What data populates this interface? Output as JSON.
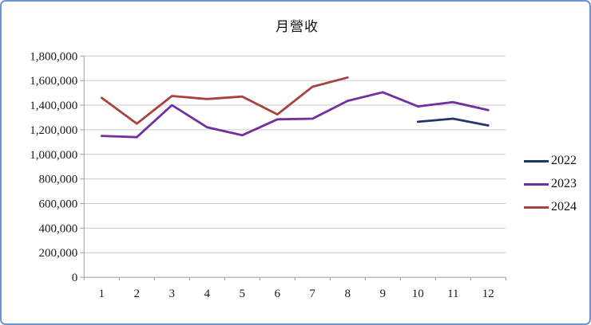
{
  "window": {
    "border_color": "#6A93D4",
    "background_color": "#FFFFFF"
  },
  "chart_data": {
    "type": "line",
    "title": "月營收",
    "categories": [
      "1",
      "2",
      "3",
      "4",
      "5",
      "6",
      "7",
      "8",
      "9",
      "10",
      "11",
      "12"
    ],
    "series": [
      {
        "name": "2022",
        "color": "#1F3864",
        "start_month": 10,
        "values": [
          1265000,
          1290000,
          1235000
        ]
      },
      {
        "name": "2023",
        "color": "#7030A0",
        "start_month": 1,
        "values": [
          1150000,
          1140000,
          1400000,
          1220000,
          1155000,
          1285000,
          1290000,
          1435000,
          1505000,
          1390000,
          1425000,
          1360000
        ]
      },
      {
        "name": "2024",
        "color": "#A8423E",
        "start_month": 1,
        "values": [
          1460000,
          1250000,
          1475000,
          1450000,
          1470000,
          1325000,
          1550000,
          1625000
        ]
      }
    ],
    "ylim": [
      0,
      1800000
    ],
    "ytick_step": 200000,
    "ytick_labels": [
      "0",
      "200,000",
      "400,000",
      "600,000",
      "800,000",
      "1,000,000",
      "1,200,000",
      "1,400,000",
      "1,600,000",
      "1,800,000"
    ],
    "xlabel": "",
    "ylabel": "",
    "grid": true,
    "legend_position": "right",
    "gridline_color": "#C9C9C9",
    "axis_color": "#9E9E9E"
  }
}
